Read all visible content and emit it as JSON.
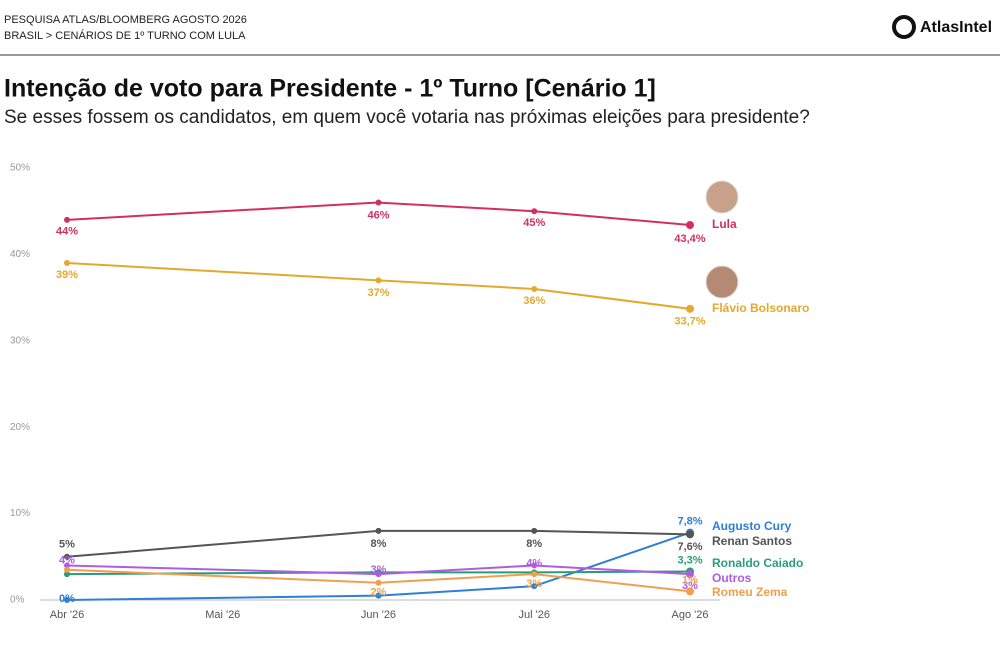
{
  "header": {
    "source": "PESQUISA ATLAS/BLOOMBERG AGOSTO 2026",
    "breadcrumb": "BRASIL > CENÁRIOS DE 1º TURNO COM LULA",
    "brand": "AtlasIntel"
  },
  "chart_data": {
    "type": "line",
    "title": "Intenção de voto para Presidente  - 1º Turno [Cenário 1]",
    "subtitle": "Se esses fossem os candidatos, em quem você votaria nas próximas eleições para presidente?",
    "categories": [
      "Abr '26",
      "Mai '26",
      "Jun '26",
      "Jul '26",
      "Ago '26"
    ],
    "ylim": [
      0,
      50
    ],
    "yticks": [
      {
        "value": 0,
        "label": "0%"
      },
      {
        "value": 10,
        "label": "10%"
      },
      {
        "value": 20,
        "label": "20%"
      },
      {
        "value": 30,
        "label": "30%"
      },
      {
        "value": 40,
        "label": "40%"
      },
      {
        "value": 50,
        "label": "50%"
      }
    ],
    "grid": false,
    "series": [
      {
        "name": "Lula",
        "color": "#d1305f",
        "values": [
          44,
          null,
          46,
          45,
          43.4
        ],
        "value_labels": [
          "44%",
          null,
          "46%",
          "45%",
          "43,4%"
        ]
      },
      {
        "name": "Flávio Bolsonaro",
        "color": "#e3a92f",
        "values": [
          39,
          null,
          37,
          36,
          33.7
        ],
        "value_labels": [
          "39%",
          null,
          "37%",
          "36%",
          "33,7%"
        ]
      },
      {
        "name": "Augusto Cury",
        "color": "#2f7fd6",
        "values": [
          0,
          null,
          0.5,
          1.6,
          7.8
        ],
        "value_labels": [
          "0%",
          null,
          null,
          null,
          "7,8%"
        ]
      },
      {
        "name": "Renan Santos",
        "color": "#555555",
        "values": [
          5,
          null,
          8,
          8,
          7.6
        ],
        "value_labels": [
          "5%",
          null,
          "8%",
          "8%",
          "7,6%"
        ]
      },
      {
        "name": "Ronaldo Caiado",
        "color": "#2a9d78",
        "values": [
          3,
          null,
          3.2,
          3.2,
          3.3
        ],
        "value_labels": [
          null,
          null,
          null,
          null,
          "3,3%"
        ]
      },
      {
        "name": "Outros",
        "color": "#b05ce0",
        "values": [
          4,
          null,
          3,
          4,
          3
        ],
        "value_labels": [
          "4%",
          null,
          "3%",
          "4%",
          "3%"
        ]
      },
      {
        "name": "Romeu Zema",
        "color": "#ef9f4f",
        "values": [
          3.5,
          null,
          2,
          3,
          1
        ],
        "value_labels": [
          null,
          null,
          "2%",
          "3%",
          "1%"
        ]
      }
    ]
  }
}
